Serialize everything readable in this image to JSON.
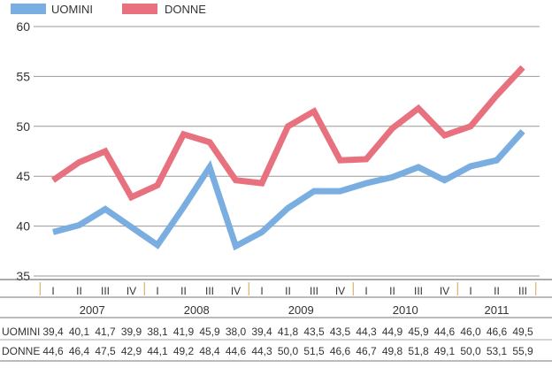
{
  "chart_data": {
    "type": "line",
    "title": "",
    "xlabel": "",
    "ylabel": "",
    "ylim": [
      35,
      60
    ],
    "yticks": [
      "60",
      "55",
      "50",
      "45",
      "40",
      "35"
    ],
    "grid": true,
    "legend_position": "top-left",
    "quarters": [
      "I",
      "II",
      "III",
      "IV",
      "I",
      "II",
      "III",
      "IV",
      "I",
      "II",
      "III",
      "IV",
      "I",
      "II",
      "III",
      "IV",
      "I",
      "II",
      "III"
    ],
    "years": [
      "2007",
      "2008",
      "2009",
      "2010",
      "2011"
    ],
    "series": [
      {
        "name": "UOMINI",
        "color": "#7aaee0",
        "values": [
          39.4,
          40.1,
          41.7,
          39.9,
          38.1,
          41.9,
          45.9,
          38.0,
          39.4,
          41.8,
          43.5,
          43.5,
          44.3,
          44.9,
          45.9,
          44.6,
          46.0,
          46.6,
          49.5
        ],
        "labels": [
          "39,4",
          "40,1",
          "41,7",
          "39,9",
          "38,1",
          "41,9",
          "45,9",
          "38,0",
          "39,4",
          "41,8",
          "43,5",
          "43,5",
          "44,3",
          "44,9",
          "45,9",
          "44,6",
          "46,0",
          "46,6",
          "49,5"
        ]
      },
      {
        "name": "DONNE",
        "color": "#e8717f",
        "values": [
          44.6,
          46.4,
          47.5,
          42.9,
          44.1,
          49.2,
          48.4,
          44.6,
          44.3,
          50.0,
          51.5,
          46.6,
          46.7,
          49.8,
          51.8,
          49.1,
          50.0,
          53.1,
          55.9
        ],
        "labels": [
          "44,6",
          "46,4",
          "47,5",
          "42,9",
          "44,1",
          "49,2",
          "48,4",
          "44,6",
          "44,3",
          "50,0",
          "51,5",
          "46,6",
          "46,7",
          "49,8",
          "51,8",
          "49,1",
          "50,0",
          "53,1",
          "55,9"
        ]
      }
    ]
  }
}
